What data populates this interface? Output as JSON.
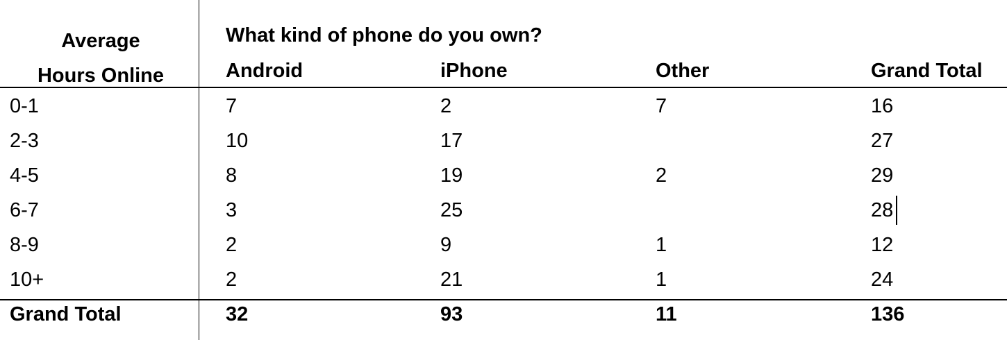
{
  "pivot": {
    "row_header_line1": "Average",
    "row_header_line2": "Hours Online",
    "column_field": "What kind of phone do you own?",
    "columns": [
      "Android",
      "iPhone",
      "Other",
      "Grand Total"
    ],
    "rows": [
      {
        "label": "0-1",
        "values": [
          "7",
          "2",
          "7",
          "16"
        ]
      },
      {
        "label": "2-3",
        "values": [
          "10",
          "17",
          "",
          "27"
        ]
      },
      {
        "label": "4-5",
        "values": [
          "8",
          "19",
          "2",
          "29"
        ]
      },
      {
        "label": "6-7",
        "values": [
          "3",
          "25",
          "",
          "28"
        ]
      },
      {
        "label": "8-9",
        "values": [
          "2",
          "9",
          "1",
          "12"
        ]
      },
      {
        "label": "10+",
        "values": [
          "2",
          "21",
          "1",
          "24"
        ]
      }
    ],
    "total": {
      "label": "Grand Total",
      "values": [
        "32",
        "93",
        "11",
        "136"
      ]
    }
  }
}
